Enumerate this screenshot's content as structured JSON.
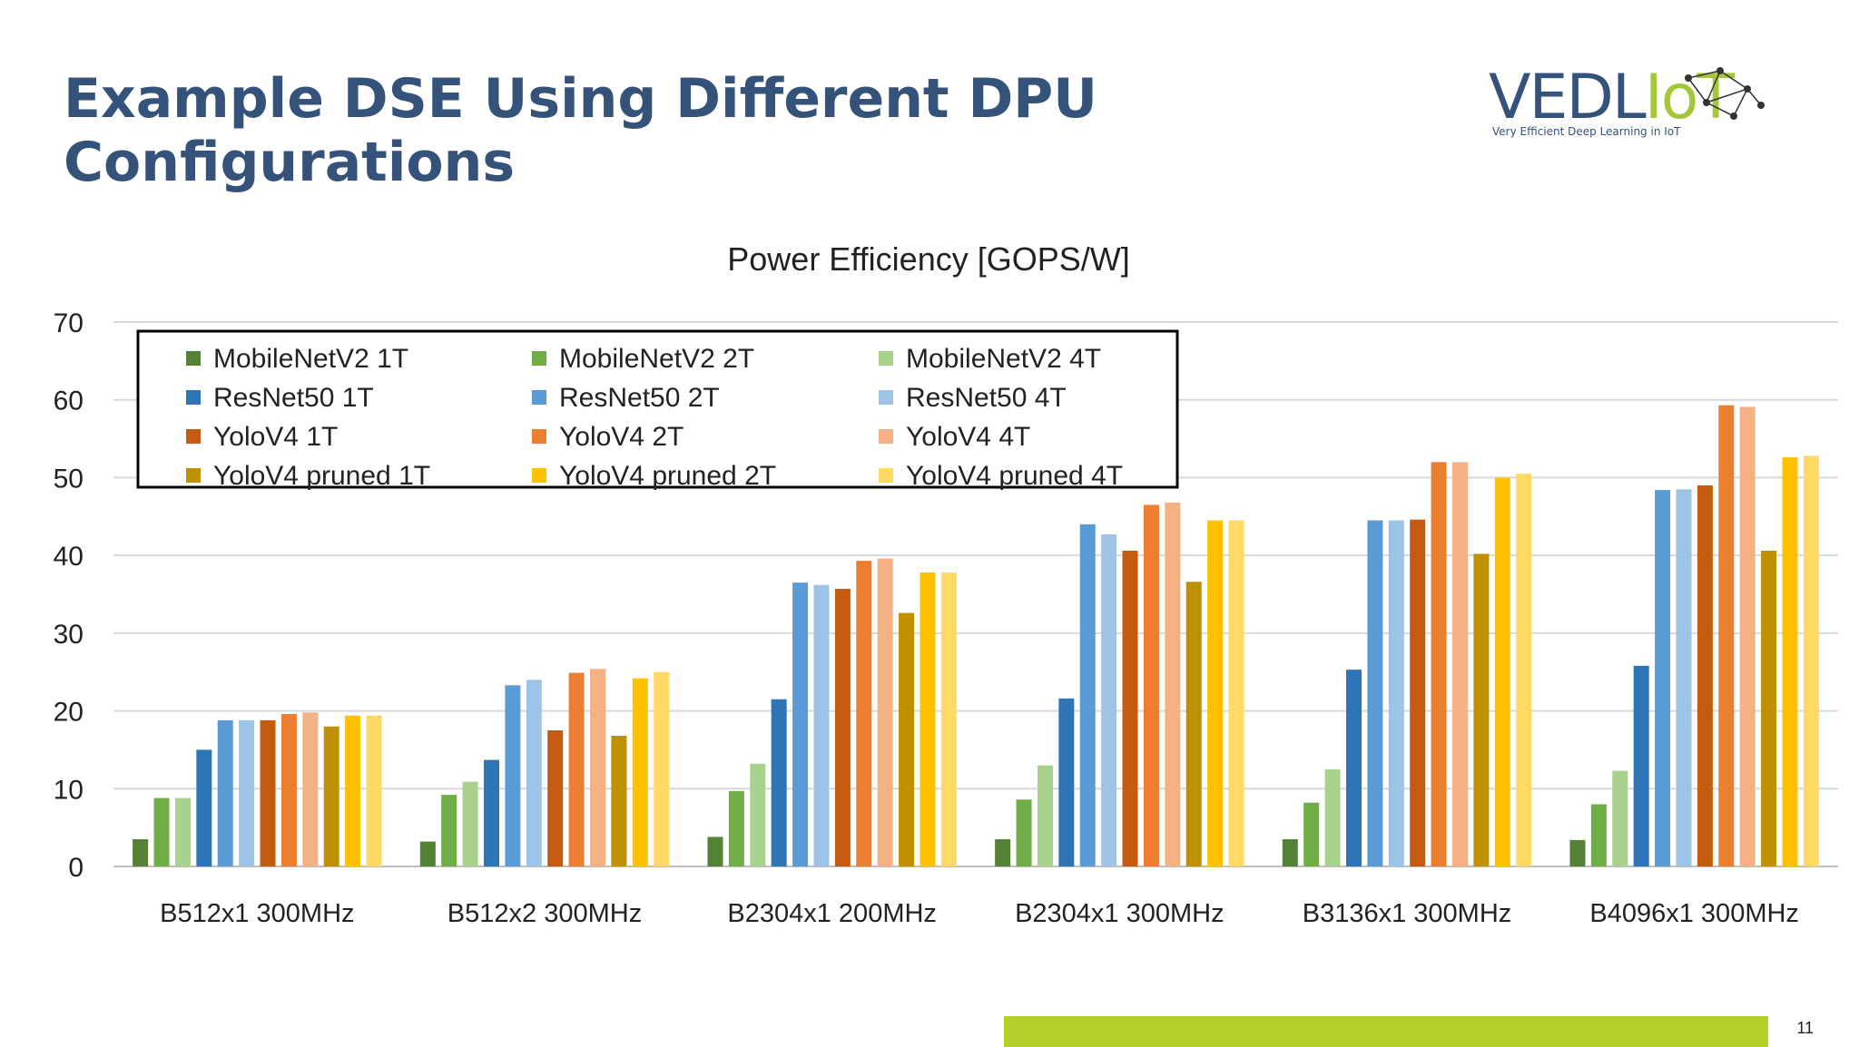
{
  "slide": {
    "title_line1": "Example DSE Using Different DPU",
    "title_line2": "Configurations",
    "page_number": "11",
    "colors": {
      "title": "#34527a",
      "footer_bar": "#b5cf2a"
    }
  },
  "logo": {
    "text_main": "VEDL",
    "text_accent": "IoT",
    "tagline": "Very Efficient Deep Learning in IoT",
    "icon": "network-graph-icon"
  },
  "chart_data": {
    "type": "bar",
    "title": "Power Efficiency [GOPS/W]",
    "xlabel": "",
    "ylabel": "",
    "ylim": [
      0,
      70
    ],
    "yticks": [
      0,
      10,
      20,
      30,
      40,
      50,
      60,
      70
    ],
    "grid": true,
    "legend_position": "top-left",
    "categories": [
      "B512x1 300MHz",
      "B512x2 300MHz",
      "B2304x1 200MHz",
      "B2304x1 300MHz",
      "B3136x1 300MHz",
      "B4096x1 300MHz"
    ],
    "series": [
      {
        "name": "MobileNetV2 1T",
        "color": "#548235",
        "values": [
          3.5,
          3.2,
          3.8,
          3.5,
          3.5,
          3.4
        ]
      },
      {
        "name": "MobileNetV2 2T",
        "color": "#70ad47",
        "values": [
          8.8,
          9.2,
          9.7,
          8.6,
          8.2,
          8.0
        ]
      },
      {
        "name": "MobileNetV2 4T",
        "color": "#a9d18e",
        "values": [
          8.8,
          10.9,
          13.2,
          13.0,
          12.5,
          12.3
        ]
      },
      {
        "name": "ResNet50 1T",
        "color": "#2e75b6",
        "values": [
          15.0,
          13.7,
          21.5,
          21.6,
          25.3,
          25.8
        ]
      },
      {
        "name": "ResNet50 2T",
        "color": "#5b9bd5",
        "values": [
          18.8,
          23.3,
          36.5,
          44.0,
          44.5,
          48.4
        ]
      },
      {
        "name": "ResNet50 4T",
        "color": "#9dc3e6",
        "values": [
          18.8,
          24.0,
          36.2,
          42.7,
          44.5,
          48.5
        ]
      },
      {
        "name": "YoloV4 1T",
        "color": "#c55a11",
        "values": [
          18.8,
          17.5,
          35.7,
          40.6,
          44.6,
          49.0
        ]
      },
      {
        "name": "YoloV4 2T",
        "color": "#ed7d31",
        "values": [
          19.6,
          24.9,
          39.3,
          46.5,
          52.0,
          59.3
        ]
      },
      {
        "name": "YoloV4 4T",
        "color": "#f4b183",
        "values": [
          19.8,
          25.4,
          39.6,
          46.8,
          52.0,
          59.1
        ]
      },
      {
        "name": "YoloV4 pruned 1T",
        "color": "#bf9000",
        "values": [
          18.0,
          16.8,
          32.6,
          36.6,
          40.2,
          40.6
        ]
      },
      {
        "name": "YoloV4 pruned 2T",
        "color": "#ffc000",
        "values": [
          19.4,
          24.2,
          37.8,
          44.5,
          50.0,
          52.6
        ]
      },
      {
        "name": "YoloV4 pruned 4T",
        "color": "#ffd966",
        "values": [
          19.4,
          25.0,
          37.8,
          44.5,
          50.5,
          52.8
        ]
      }
    ]
  }
}
